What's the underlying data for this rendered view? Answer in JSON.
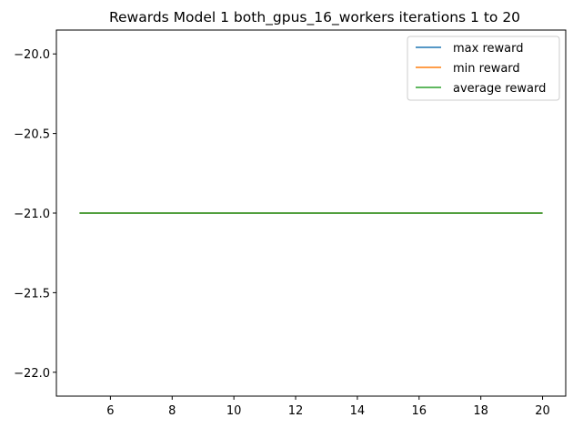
{
  "chart_data": {
    "type": "line",
    "title": "Rewards Model 1 both_gpus_16_workers iterations 1 to 20",
    "xlabel": "",
    "ylabel": "",
    "x": [
      5,
      6,
      7,
      8,
      9,
      10,
      11,
      12,
      13,
      14,
      15,
      16,
      17,
      18,
      19,
      20
    ],
    "xlim": [
      4.25,
      20.75
    ],
    "ylim": [
      -22.15,
      -19.85
    ],
    "xticks": [
      6,
      8,
      10,
      12,
      14,
      16,
      18,
      20
    ],
    "yticks": [
      -20.0,
      -20.5,
      -21.0,
      -21.5,
      -22.0
    ],
    "ytick_labels": [
      "−20.0",
      "−20.5",
      "−21.0",
      "−21.5",
      "−22.0"
    ],
    "grid": false,
    "legend_position": "top-right",
    "series": [
      {
        "name": "max reward",
        "color": "#1f77b4",
        "values": [
          -21,
          -21,
          -21,
          -21,
          -21,
          -21,
          -21,
          -21,
          -21,
          -21,
          -21,
          -21,
          -21,
          -21,
          -21,
          -21
        ]
      },
      {
        "name": "min reward",
        "color": "#ff7f0e",
        "values": [
          -21,
          -21,
          -21,
          -21,
          -21,
          -21,
          -21,
          -21,
          -21,
          -21,
          -21,
          -21,
          -21,
          -21,
          -21,
          -21
        ]
      },
      {
        "name": "average reward",
        "color": "#2ca02c",
        "values": [
          -21,
          -21,
          -21,
          -21,
          -21,
          -21,
          -21,
          -21,
          -21,
          -21,
          -21,
          -21,
          -21,
          -21,
          -21,
          -21
        ]
      }
    ]
  }
}
